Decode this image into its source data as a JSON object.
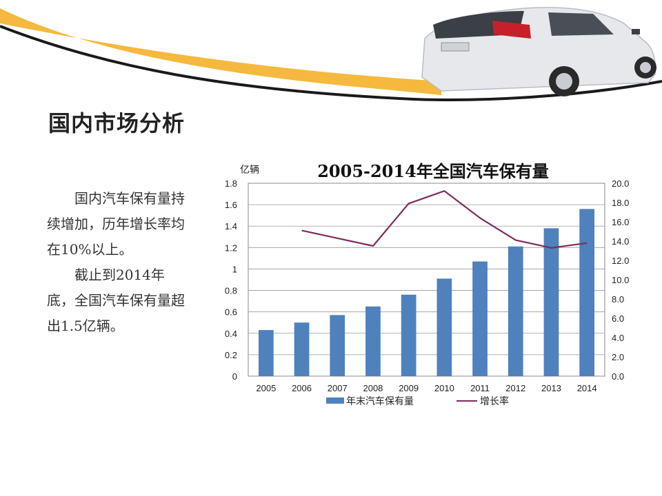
{
  "slide": {
    "title": "国内市场分析",
    "paragraphs": [
      "国内汽车保有量持续增加，历年增长率均在10%以上。",
      "截止到2014年底，全国汽车保有量超出1.5亿辆。"
    ]
  },
  "banner": {
    "image": "white-car-photo",
    "swoosh_color": "#F4B93E"
  },
  "chart_data": {
    "type": "bar",
    "title": "2005-2014年全国汽车保有量",
    "ylabel": "亿辆",
    "categories": [
      "2005",
      "2006",
      "2007",
      "2008",
      "2009",
      "2010",
      "2011",
      "2012",
      "2013",
      "2014"
    ],
    "ylim": [
      0,
      1.8
    ],
    "yticks": [
      "0",
      "0.2",
      "0.4",
      "0.6",
      "0.8",
      "1",
      "1.2",
      "1.4",
      "1.6",
      "1.8"
    ],
    "y2lim": [
      0,
      20
    ],
    "y2ticks": [
      "0.0",
      "2.0",
      "4.0",
      "6.0",
      "8.0",
      "10.0",
      "12.0",
      "14.0",
      "16.0",
      "18.0",
      "20.0"
    ],
    "series": [
      {
        "name": "年末汽车保有量",
        "type": "bar",
        "axis": "left",
        "color": "#4F81BD",
        "values": [
          0.43,
          0.5,
          0.57,
          0.65,
          0.76,
          0.91,
          1.07,
          1.21,
          1.38,
          1.56
        ]
      },
      {
        "name": "增长率",
        "type": "line",
        "axis": "right",
        "color": "#7B2C5A",
        "values": [
          null,
          15.1,
          14.3,
          13.5,
          17.9,
          19.2,
          16.4,
          14.1,
          13.3,
          13.8
        ]
      }
    ],
    "grid": true,
    "legend": "bottom"
  }
}
